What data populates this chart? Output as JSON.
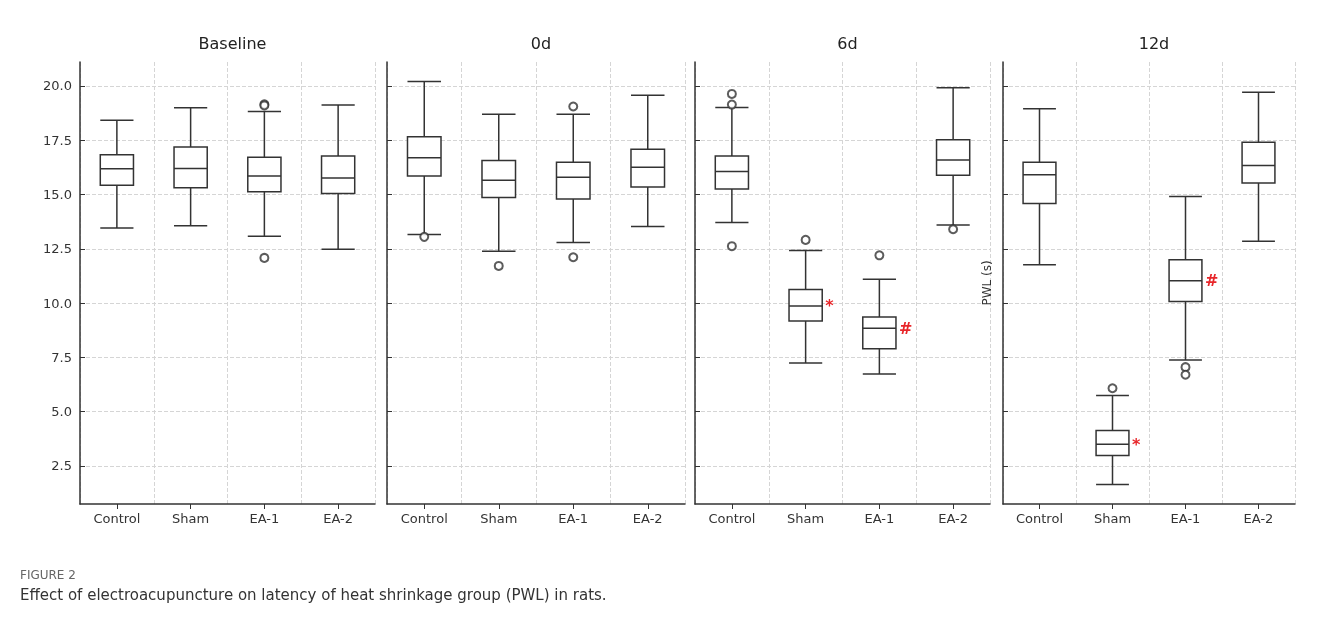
{
  "chart_data": [
    {
      "type": "box",
      "title": "Baseline",
      "categories": [
        "Control",
        "Sham",
        "EA-1",
        "EA-2"
      ],
      "color": "#333333",
      "marker": "circle",
      "grid": true,
      "boxes": [
        {
          "low": 13.46,
          "q1": 15.43,
          "median": 16.19,
          "q3": 16.83,
          "high": 18.42
        },
        {
          "low": 13.56,
          "q1": 15.31,
          "median": 16.2,
          "q3": 17.19,
          "high": 18.99
        },
        {
          "low": 13.08,
          "q1": 15.13,
          "median": 15.85,
          "q3": 16.71,
          "high": 18.82,
          "outliers": [
            19.15,
            19.1,
            12.08
          ]
        },
        {
          "low": 12.48,
          "q1": 15.05,
          "median": 15.76,
          "q3": 16.77,
          "high": 19.12
        }
      ],
      "ylim": [
        0.75,
        21.1
      ],
      "yticks": [
        2.5,
        {
          "value": 5,
          "label": "5.0"
        },
        7.5,
        {
          "value": 10,
          "label": "10.0"
        },
        12.5,
        {
          "value": 15,
          "label": "15.0"
        },
        17.5,
        {
          "value": 20,
          "label": "20.0"
        }
      ],
      "annotations": [
        "FIGURE 2",
        "Effect of electroacupuncture on latency of heat shrinkage group (PWL) in rats."
      ]
    },
    {
      "type": "box",
      "title": "0d",
      "categories": [
        "Control",
        "Sham",
        "EA-1",
        "EA-2"
      ],
      "color": "#333333",
      "marker": "circle",
      "grid": true,
      "tick_labels": "x",
      "boxes": [
        {
          "low": 13.16,
          "q1": 15.85,
          "median": 16.69,
          "q3": 17.66,
          "high": 20.2,
          "outliers": [
            13.05
          ]
        },
        {
          "low": 12.39,
          "q1": 14.86,
          "median": 15.66,
          "q3": 16.56,
          "high": 18.69,
          "outliers": [
            11.71
          ]
        },
        {
          "low": 12.79,
          "q1": 14.79,
          "median": 15.79,
          "q3": 16.49,
          "high": 18.69,
          "outliers": [
            19.05,
            12.11
          ]
        },
        {
          "low": 13.53,
          "q1": 15.34,
          "median": 16.25,
          "q3": 17.08,
          "high": 19.57
        }
      ],
      "ylim": [
        0.75,
        21.1
      ],
      "yticks": [
        2.5,
        5,
        7.5,
        10,
        12.5,
        15,
        17.5,
        20
      ]
    },
    {
      "type": "box",
      "title": "6d",
      "categories": [
        "Control",
        "Sham",
        "EA-1",
        "EA-2"
      ],
      "color": "#333333",
      "marker": "circle",
      "grid": true,
      "tick_labels": "x",
      "boxes": [
        {
          "low": 13.71,
          "q1": 15.25,
          "median": 16.06,
          "q3": 16.77,
          "high": 19.0,
          "outliers": [
            19.63,
            19.14,
            12.62
          ]
        },
        {
          "low": 7.24,
          "q1": 9.17,
          "median": 9.87,
          "q3": 10.62,
          "high": 12.42,
          "outliers": [
            12.91
          ]
        },
        {
          "low": 6.74,
          "q1": 7.9,
          "median": 8.84,
          "q3": 9.36,
          "high": 11.1,
          "outliers": [
            12.2
          ]
        },
        {
          "low": 13.59,
          "q1": 15.89,
          "median": 16.59,
          "q3": 17.52,
          "high": 19.92,
          "outliers": [
            13.4
          ]
        }
      ],
      "ylim": [
        0.75,
        21.1
      ],
      "yticks": [
        2.5,
        5,
        7.5,
        10,
        12.5,
        15,
        17.5,
        20
      ],
      "annotations": [
        {
          "text": "*",
          "x": "Sham",
          "y": 9.87
        },
        {
          "text": "#",
          "x": "EA-1",
          "y": 8.84
        }
      ]
    },
    {
      "type": "box",
      "title": "12d",
      "ylabel": "PWL (s)",
      "categories": [
        "Control",
        "Sham",
        "EA-1",
        "EA-2"
      ],
      "color": "#333333",
      "marker": "circle",
      "grid": true,
      "tick_labels": "x",
      "boxes": [
        {
          "low": 11.76,
          "q1": 14.59,
          "median": 15.91,
          "q3": 16.49,
          "high": 18.95
        },
        {
          "low": 1.65,
          "q1": 2.98,
          "median": 3.5,
          "q3": 4.13,
          "high": 5.74,
          "outliers": [
            6.08
          ]
        },
        {
          "low": 7.38,
          "q1": 10.07,
          "median": 11.03,
          "q3": 12.0,
          "high": 14.91,
          "outliers": [
            7.05,
            6.7
          ]
        },
        {
          "low": 12.85,
          "q1": 15.53,
          "median": 16.34,
          "q3": 17.4,
          "high": 19.71
        }
      ],
      "ylim": [
        0.75,
        21.1
      ],
      "yticks": [
        2.5,
        5,
        7.5,
        10,
        12.5,
        15,
        17.5,
        20
      ],
      "annotations": [
        {
          "text": "*",
          "x": "Sham",
          "y": 3.5
        },
        {
          "text": "#",
          "x": "EA-1",
          "y": 11.03
        }
      ]
    }
  ]
}
